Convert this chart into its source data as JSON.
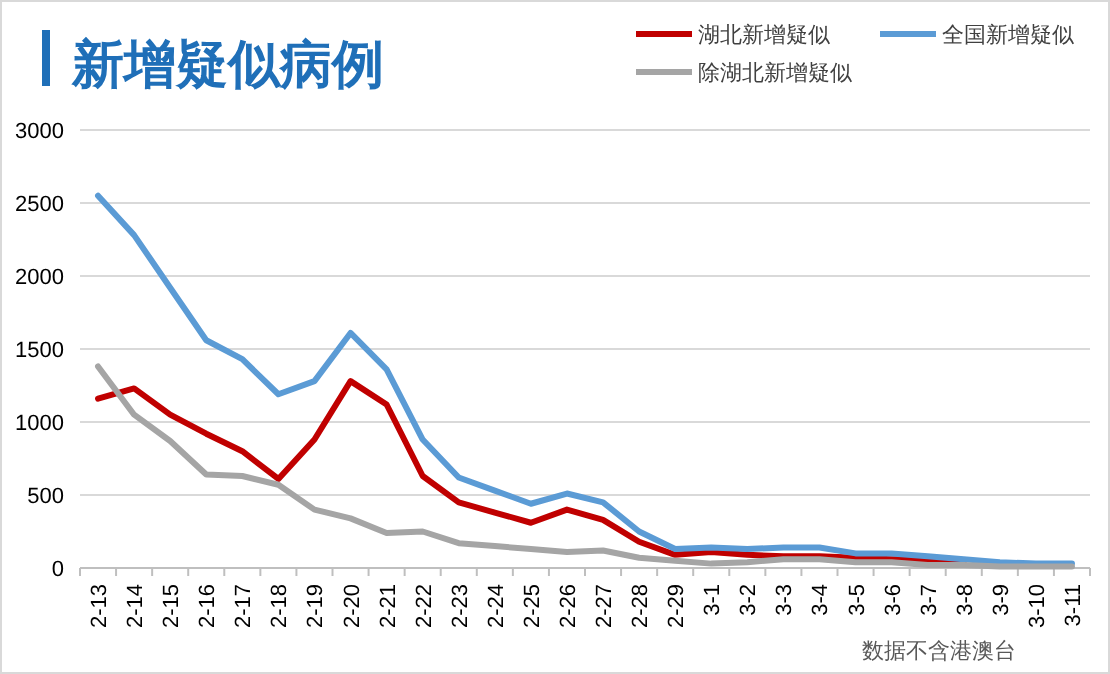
{
  "chart_data": {
    "type": "line",
    "title": "新增疑似病例",
    "categories": [
      "2-13",
      "2-14",
      "2-15",
      "2-16",
      "2-17",
      "2-18",
      "2-19",
      "2-20",
      "2-21",
      "2-22",
      "2-23",
      "2-24",
      "2-25",
      "2-26",
      "2-27",
      "2-28",
      "2-29",
      "3-1",
      "3-2",
      "3-3",
      "3-4",
      "3-5",
      "3-6",
      "3-7",
      "3-8",
      "3-9",
      "3-10",
      "3-11"
    ],
    "series": [
      {
        "name": "湖北新增疑似",
        "color": "#c00000",
        "values": [
          1160,
          1230,
          1050,
          920,
          800,
          610,
          880,
          1280,
          1120,
          630,
          450,
          380,
          310,
          400,
          330,
          180,
          90,
          110,
          90,
          80,
          80,
          70,
          60,
          60,
          40,
          null,
          null,
          null
        ]
      },
      {
        "name": "全国新增疑似",
        "color": "#5b9bd5",
        "values": [
          2550,
          2280,
          1920,
          1560,
          1430,
          1190,
          1280,
          1610,
          1360,
          880,
          620,
          530,
          440,
          510,
          450,
          250,
          130,
          140,
          130,
          140,
          140,
          100,
          100,
          80,
          60,
          40,
          30,
          30
        ]
      },
      {
        "name": "除湖北新增疑似",
        "color": "#a5a5a5",
        "values": [
          1380,
          1050,
          870,
          640,
          630,
          570,
          400,
          340,
          240,
          250,
          170,
          150,
          130,
          110,
          120,
          70,
          50,
          30,
          40,
          60,
          60,
          40,
          40,
          20,
          20,
          10,
          10,
          10
        ]
      }
    ],
    "ylim": [
      0,
      3000
    ],
    "yticks": [
      0,
      500,
      1000,
      1500,
      2000,
      2500,
      3000
    ],
    "grid": "y",
    "legend": "top right",
    "marker": "none",
    "line_style": "solid",
    "annotations": [
      "数据不含港澳台"
    ]
  }
}
